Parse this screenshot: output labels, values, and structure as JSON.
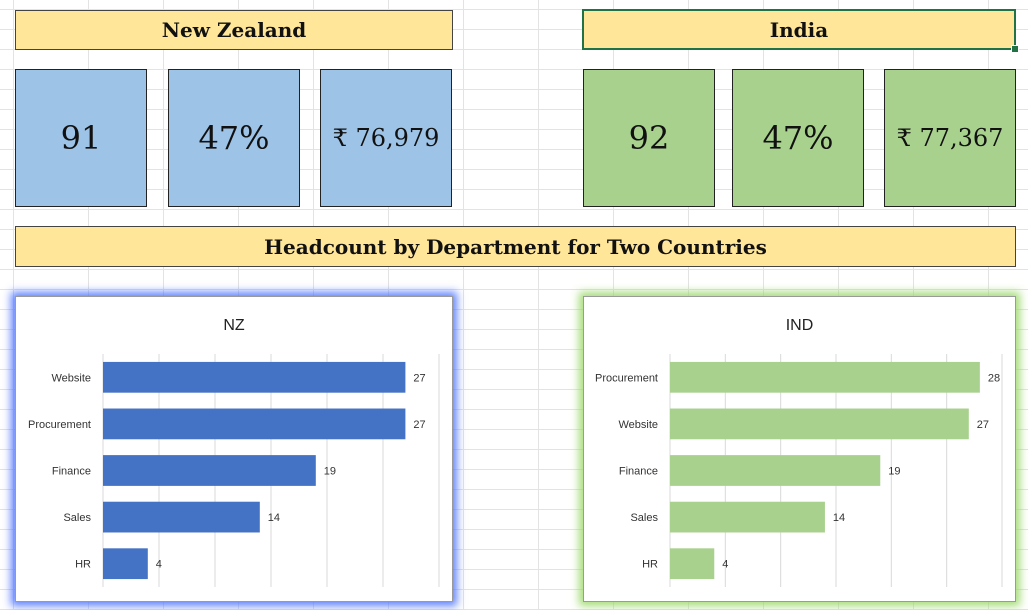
{
  "nz": {
    "title": "New Zealand",
    "kpis": [
      "91",
      "47%",
      "₹ 76,979"
    ],
    "color": "#9dc3e6",
    "bar_color": "#4472c4"
  },
  "india": {
    "title": "India",
    "kpis": [
      "92",
      "47%",
      "₹ 77,367"
    ],
    "color": "#a9d18e",
    "bar_color": "#a9d18e"
  },
  "banner": {
    "title": "Headcount by Department for Two Countries"
  },
  "chart_data": [
    {
      "type": "bar",
      "orientation": "horizontal",
      "title": "NZ",
      "categories": [
        "Website",
        "Procurement",
        "Finance",
        "Sales",
        "HR"
      ],
      "values": [
        27,
        27,
        19,
        14,
        4
      ],
      "xlim": [
        0,
        30
      ],
      "grid": true,
      "color": "#4472c4"
    },
    {
      "type": "bar",
      "orientation": "horizontal",
      "title": "IND",
      "categories": [
        "Procurement",
        "Website",
        "Finance",
        "Sales",
        "HR"
      ],
      "values": [
        28,
        27,
        19,
        14,
        4
      ],
      "xlim": [
        0,
        30
      ],
      "grid": true,
      "color": "#a9d18e"
    }
  ]
}
